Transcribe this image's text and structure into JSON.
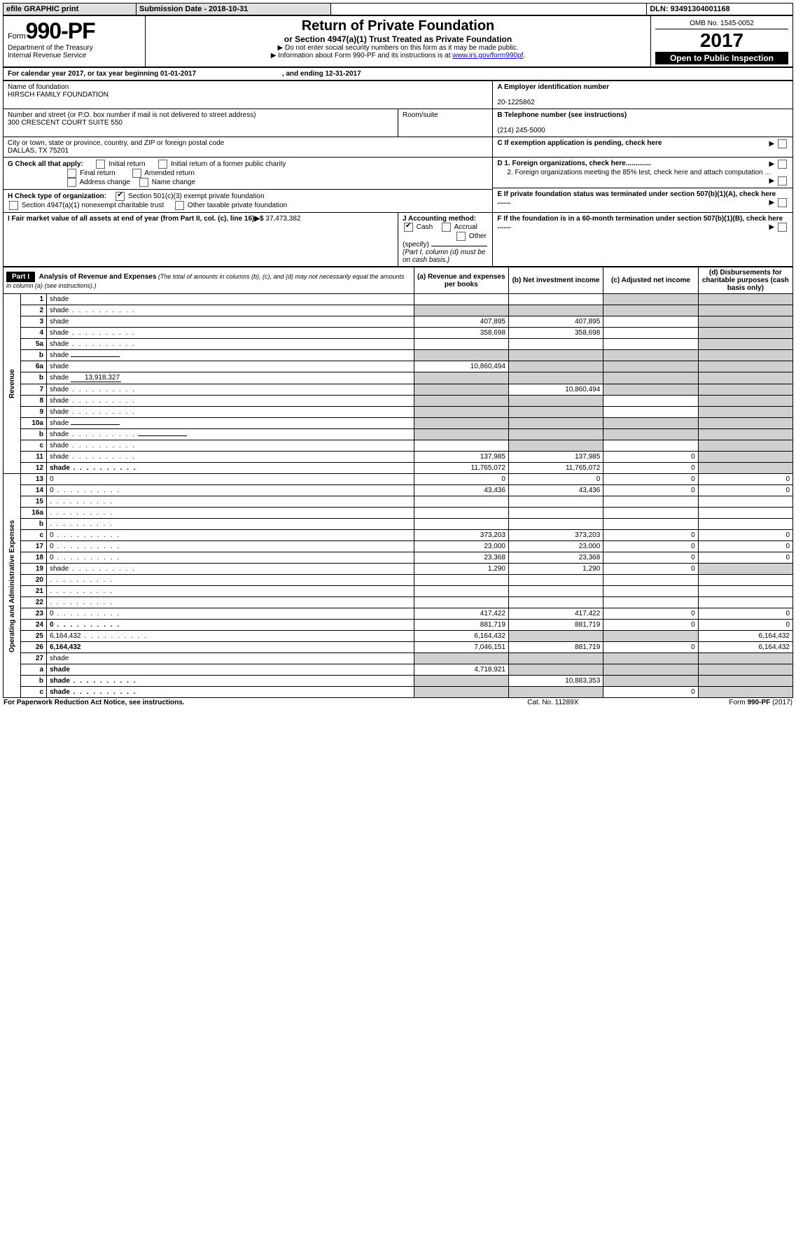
{
  "colors": {
    "black": "#000000",
    "white": "#ffffff",
    "shade": "#d0d0d0",
    "btn_bg": "#e0e0e0",
    "link": "#0000cc"
  },
  "topbar": {
    "efile": "efile GRAPHIC print",
    "submission": "Submission Date - 2018-10-31",
    "dln": "DLN: 93491304001168"
  },
  "header": {
    "form_word": "Form",
    "form_no": "990-PF",
    "dept1": "Department of the Treasury",
    "dept2": "Internal Revenue Service",
    "title": "Return of Private Foundation",
    "subtitle": "or Section 4947(a)(1) Trust Treated as Private Foundation",
    "note1": "▶ Do not enter social security numbers on this form as it may be made public.",
    "note2_pre": "▶ Information about Form 990-PF and its instructions is at ",
    "note2_link": "www.irs.gov/form990pf",
    "omb": "OMB No. 1545-0052",
    "year": "2017",
    "open": "Open to Public Inspection"
  },
  "calendar": {
    "line_pre": "For calendar year 2017, or tax year beginning ",
    "begin": "01-01-2017",
    "mid": " , and ending ",
    "end": "12-31-2017"
  },
  "id_block": {
    "name_label": "Name of foundation",
    "name": "HIRSCH FAMILY FOUNDATION",
    "addr_label": "Number and street (or P.O. box number if mail is not delivered to street address)",
    "room_label": "Room/suite",
    "addr": "300 CRESCENT COURT SUITE 550",
    "city_label": "City or town, state or province, country, and ZIP or foreign postal code",
    "city": "DALLAS, TX  75201",
    "a_label": "A Employer identification number",
    "a_val": "20-1225862",
    "b_label": "B Telephone number (see instructions)",
    "b_val": "(214) 245-5000",
    "c_label": "C If exemption application is pending, check here",
    "g_label": "G Check all that apply:",
    "g_opts": [
      "Initial return",
      "Initial return of a former public charity",
      "Final return",
      "Amended return",
      "Address change",
      "Name change"
    ],
    "h_label": "H Check type of organization:",
    "h_opts": [
      "Section 501(c)(3) exempt private foundation",
      "Section 4947(a)(1) nonexempt charitable trust",
      "Other taxable private foundation"
    ],
    "d1": "D 1. Foreign organizations, check here.............",
    "d2": "2. Foreign organizations meeting the 85% test, check here and attach computation ...",
    "e": "E  If private foundation status was terminated under section 507(b)(1)(A), check here .......",
    "f": "F  If the foundation is in a 60-month termination under section 507(b)(1)(B), check here .......",
    "i_label": "I Fair market value of all assets at end of year (from Part II, col. (c), line 16)▶$",
    "i_val": " 37,473,382",
    "j_label": "J Accounting method:",
    "j_cash": "Cash",
    "j_accrual": "Accrual",
    "j_other": "Other (specify)",
    "j_note": "(Part I, column (d) must be on cash basis.)"
  },
  "part1": {
    "label": "Part I",
    "title": "Analysis of Revenue and Expenses",
    "title_note": " (The total of amounts in columns (b), (c), and (d) may not necessarily equal the amounts in column (a) (see instructions).)",
    "col_a": "(a)   Revenue and expenses per books",
    "col_b": "(b)  Net investment income",
    "col_c": "(c)  Adjusted net income",
    "col_d": "(d)  Disbursements for charitable purposes (cash basis only)"
  },
  "side_labels": {
    "revenue": "Revenue",
    "expenses": "Operating and Administrative Expenses"
  },
  "rows": [
    {
      "n": "1",
      "d": "shade",
      "a": "",
      "b": "",
      "c": "shade"
    },
    {
      "n": "2",
      "d": "shade",
      "a": "shade",
      "b": "shade",
      "c": "shade",
      "dots": true,
      "nob": true
    },
    {
      "n": "3",
      "d": "shade",
      "a": "407,895",
      "b": "407,895",
      "c": ""
    },
    {
      "n": "4",
      "d": "shade",
      "a": "358,698",
      "b": "358,698",
      "c": "",
      "dots": true
    },
    {
      "n": "5a",
      "d": "shade",
      "a": "",
      "b": "",
      "c": "",
      "dots": true
    },
    {
      "n": "b",
      "d": "shade",
      "a": "shade",
      "b": "shade",
      "c": "shade",
      "inline": true
    },
    {
      "n": "6a",
      "d": "shade",
      "a": "10,860,494",
      "b": "shade",
      "c": "shade"
    },
    {
      "n": "b",
      "d": "shade",
      "a": "shade",
      "b": "shade",
      "c": "shade",
      "inline": true,
      "inlineval": "13,918,327"
    },
    {
      "n": "7",
      "d": "shade",
      "a": "shade",
      "b": "10,860,494",
      "c": "shade",
      "dots": true
    },
    {
      "n": "8",
      "d": "shade",
      "a": "shade",
      "b": "shade",
      "c": "",
      "dots": true
    },
    {
      "n": "9",
      "d": "shade",
      "a": "shade",
      "b": "shade",
      "c": "",
      "dots": true
    },
    {
      "n": "10a",
      "d": "shade",
      "a": "shade",
      "b": "shade",
      "c": "shade",
      "inline": true
    },
    {
      "n": "b",
      "d": "shade",
      "a": "shade",
      "b": "shade",
      "c": "shade",
      "inline": true,
      "dots": true
    },
    {
      "n": "c",
      "d": "shade",
      "a": "",
      "b": "shade",
      "c": "",
      "dots": true
    },
    {
      "n": "11",
      "d": "shade",
      "a": "137,985",
      "b": "137,985",
      "c": "0",
      "dots": true
    },
    {
      "n": "12",
      "d": "shade",
      "a": "11,765,072",
      "b": "11,765,072",
      "c": "0",
      "bold": true,
      "dots": true
    },
    {
      "n": "13",
      "d": "0",
      "a": "0",
      "b": "0",
      "c": "0"
    },
    {
      "n": "14",
      "d": "0",
      "a": "43,436",
      "b": "43,436",
      "c": "0",
      "dots": true
    },
    {
      "n": "15",
      "d": "",
      "a": "",
      "b": "",
      "c": "",
      "dots": true
    },
    {
      "n": "16a",
      "d": "",
      "a": "",
      "b": "",
      "c": "",
      "dots": true
    },
    {
      "n": "b",
      "d": "",
      "a": "",
      "b": "",
      "c": "",
      "dots": true
    },
    {
      "n": "c",
      "d": "0",
      "a": "373,203",
      "b": "373,203",
      "c": "0",
      "dots": true
    },
    {
      "n": "17",
      "d": "0",
      "a": "23,000",
      "b": "23,000",
      "c": "0",
      "dots": true
    },
    {
      "n": "18",
      "d": "0",
      "a": "23,368",
      "b": "23,368",
      "c": "0",
      "dots": true
    },
    {
      "n": "19",
      "d": "shade",
      "a": "1,290",
      "b": "1,290",
      "c": "0",
      "dots": true
    },
    {
      "n": "20",
      "d": "",
      "a": "",
      "b": "",
      "c": "",
      "dots": true
    },
    {
      "n": "21",
      "d": "",
      "a": "",
      "b": "",
      "c": "",
      "dots": true
    },
    {
      "n": "22",
      "d": "",
      "a": "",
      "b": "",
      "c": "",
      "dots": true
    },
    {
      "n": "23",
      "d": "0",
      "a": "417,422",
      "b": "417,422",
      "c": "0",
      "dots": true
    },
    {
      "n": "24",
      "d": "0",
      "a": "881,719",
      "b": "881,719",
      "c": "0",
      "bold": true,
      "dots": true
    },
    {
      "n": "25",
      "d": "6,164,432",
      "a": "6,164,432",
      "b": "shade",
      "c": "shade",
      "dots": true
    },
    {
      "n": "26",
      "d": "6,164,432",
      "a": "7,046,151",
      "b": "881,719",
      "c": "0",
      "bold": true
    },
    {
      "n": "27",
      "d": "shade",
      "a": "shade",
      "b": "shade",
      "c": "shade"
    },
    {
      "n": "a",
      "d": "shade",
      "a": "4,718,921",
      "b": "shade",
      "c": "shade",
      "bold": true
    },
    {
      "n": "b",
      "d": "shade",
      "a": "shade",
      "b": "10,883,353",
      "c": "shade",
      "bold": true,
      "dots": true
    },
    {
      "n": "c",
      "d": "shade",
      "a": "shade",
      "b": "shade",
      "c": "0",
      "bold": true,
      "dots": true
    }
  ],
  "footer": {
    "left": "For Paperwork Reduction Act Notice, see instructions.",
    "mid": "Cat. No. 11289X",
    "right": "Form 990-PF (2017)"
  }
}
